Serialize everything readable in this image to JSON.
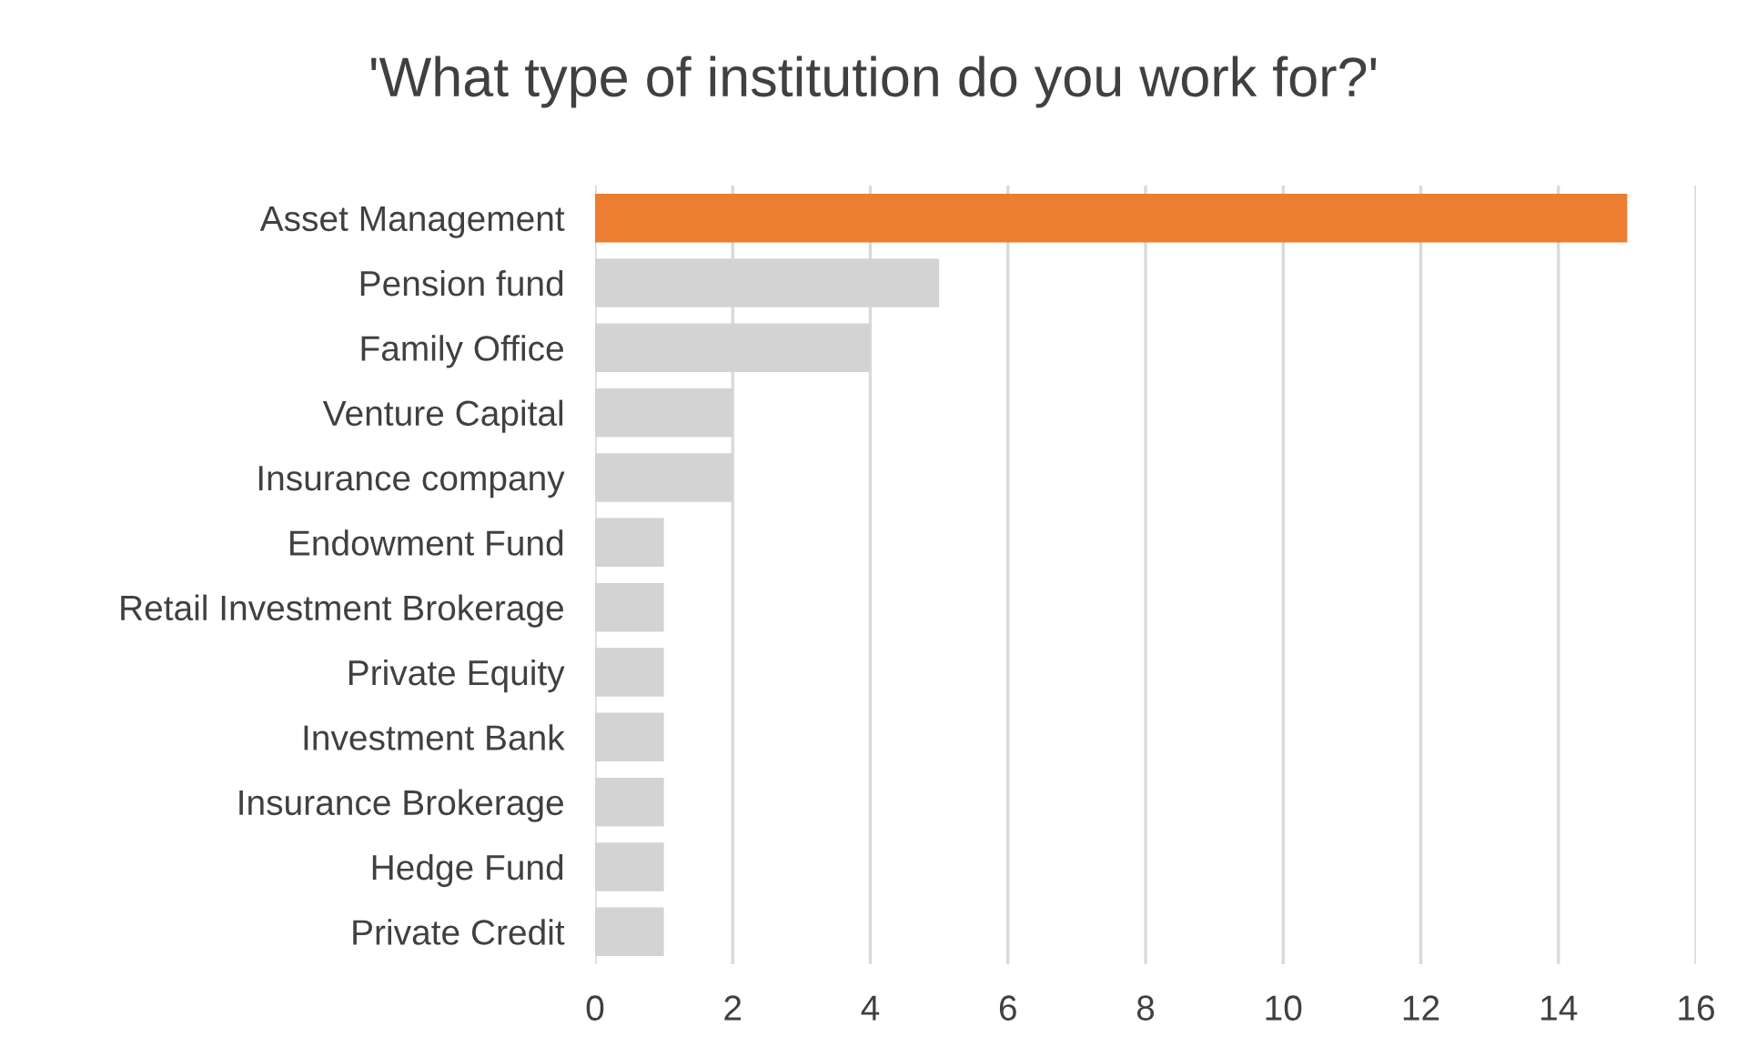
{
  "chart_data": {
    "type": "bar",
    "orientation": "horizontal",
    "title": "'What type of institution do you work for?'",
    "categories": [
      "Asset Management",
      "Pension fund",
      "Family Office",
      "Venture Capital",
      "Insurance company",
      "Endowment Fund",
      "Retail Investment Brokerage",
      "Private Equity",
      "Investment Bank",
      "Insurance Brokerage",
      "Hedge Fund",
      "Private Credit"
    ],
    "values": [
      15,
      5,
      4,
      2,
      2,
      1,
      1,
      1,
      1,
      1,
      1,
      1
    ],
    "colors": [
      "#ed7d31",
      "#d3d3d3",
      "#d3d3d3",
      "#d3d3d3",
      "#d3d3d3",
      "#d3d3d3",
      "#d3d3d3",
      "#d3d3d3",
      "#d3d3d3",
      "#d3d3d3",
      "#d3d3d3",
      "#d3d3d3"
    ],
    "xlim": [
      0,
      16
    ],
    "xticks": [
      0,
      2,
      4,
      6,
      8,
      10,
      12,
      14,
      16
    ],
    "grid": "x"
  }
}
